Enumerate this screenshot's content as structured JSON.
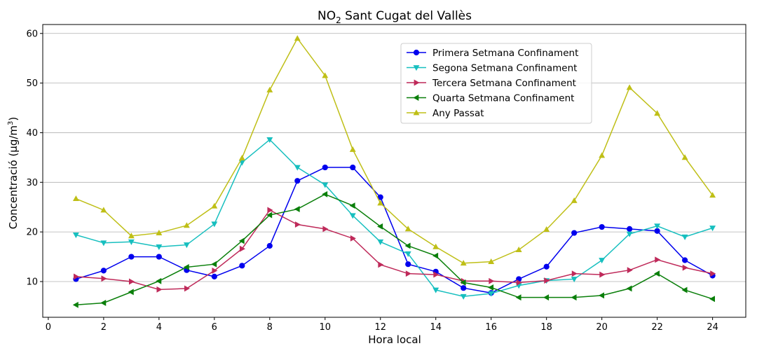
{
  "chart_data": {
    "type": "line",
    "title": {
      "prefix": "NO",
      "subscript": "2",
      "suffix": " Sant Cugat del Vallès"
    },
    "xlabel": "Hora local",
    "ylabel": {
      "main": "Concentració (μg/m",
      "superscript": "3",
      "close": ")"
    },
    "xlim": [
      -0.2,
      25.2
    ],
    "ylim": [
      2.8,
      61.8
    ],
    "xticks": [
      0,
      2,
      4,
      6,
      8,
      10,
      12,
      14,
      16,
      18,
      20,
      22,
      24
    ],
    "yticks": [
      10,
      20,
      30,
      40,
      50,
      60
    ],
    "grid": "horizontal",
    "legend_position": "top-center",
    "x": [
      1,
      2,
      3,
      4,
      5,
      6,
      7,
      8,
      9,
      10,
      11,
      12,
      13,
      14,
      15,
      16,
      17,
      18,
      19,
      20,
      21,
      22,
      23,
      24
    ],
    "series": [
      {
        "name": "Primera Setmana Confinament",
        "color": "#0000ee",
        "marker": "circle",
        "values": [
          10.5,
          12.2,
          15.0,
          15.0,
          12.3,
          11.0,
          13.2,
          17.2,
          30.3,
          33.0,
          33.0,
          27.0,
          13.5,
          12.0,
          8.7,
          7.7,
          10.5,
          13.0,
          19.8,
          21.0,
          20.6,
          20.2,
          14.3,
          11.2
        ]
      },
      {
        "name": "Segona Setmana Confinament",
        "color": "#17bfbf",
        "marker": "triangle-down",
        "values": [
          19.4,
          17.8,
          18.0,
          17.0,
          17.4,
          21.6,
          34.0,
          38.6,
          33.0,
          29.5,
          23.3,
          18.0,
          15.6,
          8.3,
          7.0,
          7.6,
          9.2,
          10.2,
          10.5,
          14.3,
          19.6,
          21.2,
          19.0,
          20.8
        ]
      },
      {
        "name": "Tercera Setmana Confinament",
        "color": "#bf2a5a",
        "marker": "triangle-right",
        "values": [
          11.0,
          10.6,
          10.0,
          8.4,
          8.6,
          12.2,
          16.6,
          24.4,
          21.5,
          20.6,
          18.7,
          13.4,
          11.6,
          11.4,
          10.1,
          10.1,
          9.8,
          10.2,
          11.6,
          11.4,
          12.3,
          14.4,
          12.8,
          11.6
        ]
      },
      {
        "name": "Quarta Setmana Confinament",
        "color": "#0a7f0a",
        "marker": "triangle-left",
        "values": [
          5.3,
          5.7,
          7.9,
          10.1,
          12.9,
          13.5,
          18.2,
          23.4,
          24.6,
          27.6,
          25.3,
          21.1,
          17.2,
          15.2,
          9.8,
          8.8,
          6.8,
          6.8,
          6.8,
          7.2,
          8.6,
          11.6,
          8.3,
          6.5
        ]
      },
      {
        "name": "Any Passat",
        "color": "#bfbf17",
        "marker": "triangle-up",
        "values": [
          26.7,
          24.4,
          19.2,
          19.8,
          21.3,
          25.2,
          34.9,
          48.6,
          59.0,
          51.5,
          36.6,
          25.8,
          20.6,
          17.0,
          13.7,
          14.0,
          16.4,
          20.5,
          26.3,
          35.4,
          49.1,
          43.9,
          35.0,
          27.4
        ]
      }
    ]
  }
}
